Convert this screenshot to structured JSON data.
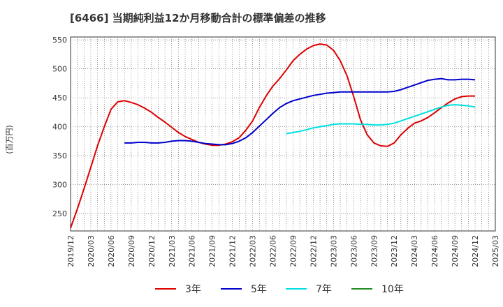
{
  "chart_data": {
    "type": "line",
    "title": "[6466]  当期純利益12か月移動合計の標準偏差の推移",
    "ylabel": "(百万円)",
    "ylim": [
      220,
      555
    ],
    "yticks": [
      250,
      300,
      350,
      400,
      450,
      500,
      550
    ],
    "xlim": [
      "2019/12",
      "2025/03"
    ],
    "xticks": [
      "2019/12",
      "2020/03",
      "2020/06",
      "2020/09",
      "2020/12",
      "2021/03",
      "2021/06",
      "2021/09",
      "2021/12",
      "2022/03",
      "2022/06",
      "2022/09",
      "2022/12",
      "2023/03",
      "2023/06",
      "2023/09",
      "2023/12",
      "2024/03",
      "2024/06",
      "2024/09",
      "2024/12",
      "2025/03"
    ],
    "grid": true,
    "legend_position": "bottom",
    "series": [
      {
        "name": "3年",
        "color": "#dd0000",
        "x": [
          "2019/12",
          "2020/01",
          "2020/02",
          "2020/03",
          "2020/04",
          "2020/05",
          "2020/06",
          "2020/07",
          "2020/08",
          "2020/09",
          "2020/10",
          "2020/11",
          "2020/12",
          "2021/01",
          "2021/02",
          "2021/03",
          "2021/04",
          "2021/05",
          "2021/06",
          "2021/07",
          "2021/08",
          "2021/09",
          "2021/10",
          "2021/11",
          "2021/12",
          "2022/01",
          "2022/02",
          "2022/03",
          "2022/04",
          "2022/05",
          "2022/06",
          "2022/07",
          "2022/08",
          "2022/09",
          "2022/10",
          "2022/11",
          "2022/12",
          "2023/01",
          "2023/02",
          "2023/03",
          "2023/04",
          "2023/05",
          "2023/06",
          "2023/07",
          "2023/08",
          "2023/09",
          "2023/10",
          "2023/11",
          "2023/12",
          "2024/01",
          "2024/02",
          "2024/03",
          "2024/04",
          "2024/05",
          "2024/06",
          "2024/07",
          "2024/08",
          "2024/09",
          "2024/10",
          "2024/11",
          "2024/12"
        ],
        "values": [
          225,
          258,
          293,
          330,
          367,
          400,
          430,
          443,
          445,
          442,
          438,
          432,
          425,
          416,
          408,
          399,
          390,
          383,
          378,
          373,
          370,
          368,
          368,
          370,
          374,
          381,
          394,
          410,
          433,
          453,
          470,
          483,
          498,
          514,
          525,
          534,
          540,
          543,
          541,
          532,
          514,
          488,
          452,
          412,
          386,
          372,
          367,
          366,
          372,
          386,
          397,
          406,
          410,
          416,
          424,
          433,
          441,
          448,
          452,
          453,
          453
        ]
      },
      {
        "name": "5年",
        "color": "#0000cc",
        "x": [
          "2020/08",
          "2020/09",
          "2020/10",
          "2020/11",
          "2020/12",
          "2021/01",
          "2021/02",
          "2021/03",
          "2021/04",
          "2021/05",
          "2021/06",
          "2021/07",
          "2021/08",
          "2021/09",
          "2021/10",
          "2021/11",
          "2021/12",
          "2022/01",
          "2022/02",
          "2022/03",
          "2022/04",
          "2022/05",
          "2022/06",
          "2022/07",
          "2022/08",
          "2022/09",
          "2022/10",
          "2022/11",
          "2022/12",
          "2023/01",
          "2023/02",
          "2023/03",
          "2023/04",
          "2023/05",
          "2023/06",
          "2023/07",
          "2023/08",
          "2023/09",
          "2023/10",
          "2023/11",
          "2023/12",
          "2024/01",
          "2024/02",
          "2024/03",
          "2024/04",
          "2024/05",
          "2024/06",
          "2024/07",
          "2024/08",
          "2024/09",
          "2024/10",
          "2024/11",
          "2024/12"
        ],
        "values": [
          372,
          372,
          373,
          373,
          372,
          372,
          373,
          375,
          376,
          376,
          375,
          373,
          371,
          370,
          369,
          369,
          371,
          375,
          381,
          390,
          401,
          412,
          423,
          433,
          440,
          445,
          448,
          451,
          454,
          456,
          458,
          459,
          460,
          460,
          460,
          460,
          460,
          460,
          460,
          460,
          461,
          464,
          468,
          472,
          476,
          480,
          482,
          483,
          481,
          481,
          482,
          482,
          481
        ]
      },
      {
        "name": "7年",
        "color": "#00e0e0",
        "x": [
          "2022/08",
          "2022/09",
          "2022/10",
          "2022/11",
          "2022/12",
          "2023/01",
          "2023/02",
          "2023/03",
          "2023/04",
          "2023/05",
          "2023/06",
          "2023/07",
          "2023/08",
          "2023/09",
          "2023/10",
          "2023/11",
          "2023/12",
          "2024/01",
          "2024/02",
          "2024/03",
          "2024/04",
          "2024/05",
          "2024/06",
          "2024/07",
          "2024/08",
          "2024/09",
          "2024/10",
          "2024/11",
          "2024/12"
        ],
        "values": [
          388,
          390,
          392,
          395,
          398,
          400,
          402,
          404,
          405,
          405,
          405,
          404,
          404,
          403,
          403,
          404,
          406,
          410,
          414,
          418,
          422,
          426,
          430,
          434,
          437,
          438,
          437,
          436,
          434
        ]
      },
      {
        "name": "10年",
        "color": "#228b22",
        "x": [],
        "values": []
      }
    ]
  }
}
